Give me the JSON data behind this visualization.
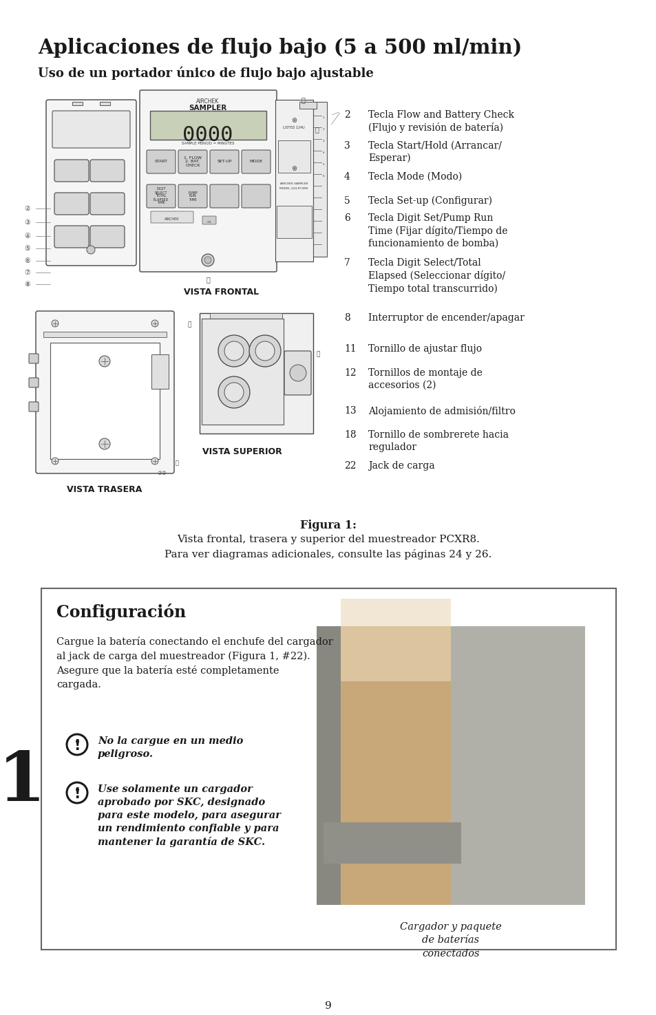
{
  "bg_color": "#ffffff",
  "title_main": "Aplicaciones de flujo bajo (5 a 500 ml/min)",
  "title_sub": "Uso de un portador único de flujo bajo ajustable",
  "right_labels": [
    {
      "num": "2",
      "text": "Tecla Flow and Battery Check\n(Flujo y revisión de batería)"
    },
    {
      "num": "3",
      "text": "Tecla Start/Hold (Arrancar/\nEsperar)"
    },
    {
      "num": "4",
      "text": "Tecla Mode (Modo)"
    },
    {
      "num": "5",
      "text": "Tecla Set-up (Configurar)"
    },
    {
      "num": "6",
      "text": "Tecla Digit Set/Pump Run\nTime (Fijar dígito/Tiempo de\nfuncionamiento de bomba)"
    },
    {
      "num": "7",
      "text": "Tecla Digit Select/Total\nElapsed (Seleccionar dígito/\nTiempo total transcurrido)"
    },
    {
      "num": "8",
      "text": "Interruptor de encender/apagar"
    },
    {
      "num": "11",
      "text": "Tornillo de ajustar flujo"
    },
    {
      "num": "12",
      "text": "Tornillos de montaje de\naccesorios (2)"
    },
    {
      "num": "13",
      "text": "Alojamiento de admisión/filtro"
    },
    {
      "num": "18",
      "text": "Tornillo de sombrerete hacia\nregulador"
    },
    {
      "num": "22",
      "text": "Jack de carga"
    }
  ],
  "label_y_positions": [
    160,
    205,
    250,
    285,
    310,
    375,
    455,
    500,
    535,
    590,
    625,
    670
  ],
  "vista_frontal_label": "VISTA FRONTAL",
  "vista_trasera_label": "VISTA TRASERA",
  "vista_superior_label": "VISTA SUPERIOR",
  "figura_title": "Figura 1:",
  "figura_text": "Vista frontal, trasera y superior del muestreador PCXR8.\nPara ver diagramas adicionales, consulte las páginas 24 y 26.",
  "config_title": "Configuración",
  "config_intro": "Cargue la batería conectando el enchufe del cargador\nal jack de carga del muestreador (Figura 1, #22).\nAsegure que la batería esté completamente\ncargada.",
  "warning1": "No la cargue en un medio\npeligroso.",
  "warning2": "Use solamente un cargador\naprobado por SKC, designado\npara este modelo, para asegurar\nun rendimiento confiable y para\nmantener la garantía de SKC.",
  "photo_caption": "Cargador y paquete\nde baterías\nconectados",
  "step_number": "1",
  "page_number": "9"
}
